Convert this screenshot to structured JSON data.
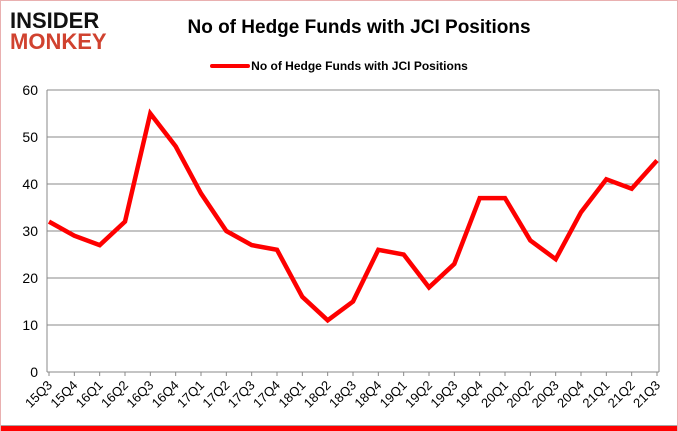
{
  "logo": {
    "line1": "INSIDER",
    "line2": "MONKEY"
  },
  "header": {
    "title": "No of Hedge Funds with JCI Positions"
  },
  "legend": {
    "label": "No of Hedge Funds with JCI Positions"
  },
  "chart_data": {
    "type": "line",
    "title": "No of Hedge Funds with JCI Positions",
    "categories": [
      "15Q3",
      "15Q4",
      "16Q1",
      "16Q2",
      "16Q3",
      "16Q4",
      "17Q1",
      "17Q2",
      "17Q3",
      "17Q4",
      "18Q1",
      "18Q2",
      "18Q3",
      "18Q4",
      "19Q1",
      "19Q2",
      "19Q3",
      "19Q4",
      "20Q1",
      "20Q2",
      "20Q3",
      "20Q4",
      "21Q1",
      "21Q2",
      "21Q3"
    ],
    "series": [
      {
        "name": "No of Hedge Funds with JCI Positions",
        "color": "#fe0000",
        "values": [
          32,
          29,
          27,
          32,
          55,
          48,
          38,
          30,
          27,
          26,
          16,
          11,
          15,
          26,
          25,
          18,
          23,
          37,
          37,
          28,
          24,
          34,
          41,
          39,
          45
        ]
      }
    ],
    "xlabel": "",
    "ylabel": "",
    "ylim": [
      0,
      60
    ],
    "yticks": [
      0,
      10,
      20,
      30,
      40,
      50,
      60
    ],
    "grid": true,
    "legend_position": "top"
  },
  "colors": {
    "series_line": "#fe0000",
    "gridline": "#898989",
    "axis_text": "#000000",
    "frame_border": "#e9b0b0",
    "bottom_bar": "#fe0000",
    "logo_monkey": "#d0422f"
  }
}
